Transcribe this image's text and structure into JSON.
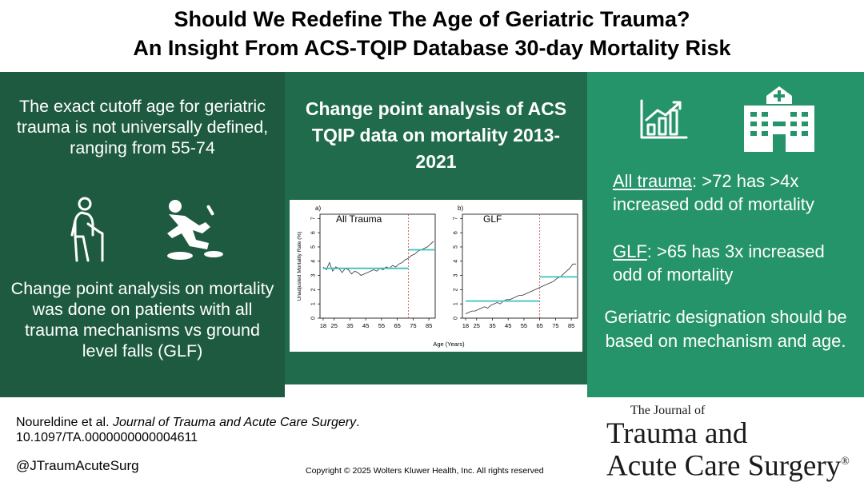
{
  "title": {
    "line1": "Should We Redefine The Age of Geriatric Trauma?",
    "line2": "An Insight From ACS-TQIP Database 30-day Mortality Risk"
  },
  "left_panel": {
    "intro": "The exact cutoff age for geriatric trauma is not universally defined, ranging from 55-74",
    "icons": [
      "elderly-person-icon",
      "person-falling-icon"
    ],
    "method": "Change point analysis on mortality was done on patients with all trauma mechanisms vs ground level falls (GLF)"
  },
  "middle_panel": {
    "heading": "Change point analysis of ACS TQIP data on mortality 2013-2021"
  },
  "chart_data": [
    {
      "type": "line",
      "panel_label": "a)",
      "title": "All Trauma",
      "xlabel": "Age (Years)",
      "ylabel": "Unadjusted Mortality Rate (%)",
      "x_ticks": [
        18,
        25,
        35,
        45,
        55,
        65,
        75,
        85
      ],
      "y_ticks": [
        0,
        1,
        2,
        3,
        4,
        5,
        6,
        7
      ],
      "xlim": [
        16,
        89
      ],
      "ylim": [
        0,
        7.3
      ],
      "change_point": 72,
      "segments": [
        {
          "x_start": 18,
          "x_end": 72,
          "y": 3.5
        },
        {
          "x_start": 72,
          "x_end": 89,
          "y": 4.8
        }
      ],
      "series": [
        {
          "x": [
            18,
            20,
            22,
            24,
            26,
            28,
            30,
            32,
            34,
            36,
            38,
            40,
            42,
            44,
            46,
            48,
            50,
            52,
            54,
            56,
            58,
            60,
            62,
            64,
            66,
            68,
            70,
            72,
            74,
            76,
            78,
            80,
            82,
            84,
            86,
            88
          ],
          "y": [
            3.6,
            3.4,
            3.9,
            3.3,
            3.6,
            3.5,
            3.2,
            3.5,
            3.4,
            3.1,
            3.3,
            3.2,
            3.0,
            3.1,
            3.2,
            3.3,
            3.4,
            3.3,
            3.5,
            3.4,
            3.6,
            3.5,
            3.7,
            3.6,
            3.8,
            3.9,
            4.1,
            4.2,
            4.4,
            4.5,
            4.7,
            4.8,
            4.9,
            5.0,
            5.2,
            5.4
          ]
        }
      ]
    },
    {
      "type": "line",
      "panel_label": "b)",
      "title": "GLF",
      "xlabel": "Age (Years)",
      "ylabel": "",
      "x_ticks": [
        18,
        25,
        35,
        45,
        55,
        65,
        75,
        85
      ],
      "y_ticks": [
        0,
        1,
        2,
        3,
        4,
        5,
        6,
        7
      ],
      "xlim": [
        16,
        89
      ],
      "ylim": [
        0,
        7.3
      ],
      "change_point": 65,
      "segments": [
        {
          "x_start": 18,
          "x_end": 65,
          "y": 1.2
        },
        {
          "x_start": 65,
          "x_end": 89,
          "y": 2.9
        }
      ],
      "series": [
        {
          "x": [
            18,
            20,
            22,
            24,
            26,
            28,
            30,
            32,
            34,
            36,
            38,
            40,
            42,
            44,
            46,
            48,
            50,
            52,
            54,
            56,
            58,
            60,
            62,
            64,
            66,
            68,
            70,
            72,
            74,
            76,
            78,
            80,
            82,
            84,
            86,
            88
          ],
          "y": [
            0.3,
            0.4,
            0.5,
            0.5,
            0.6,
            0.7,
            0.8,
            0.7,
            0.9,
            1.0,
            1.1,
            1.0,
            1.2,
            1.3,
            1.3,
            1.4,
            1.5,
            1.6,
            1.6,
            1.7,
            1.8,
            1.9,
            2.0,
            2.1,
            2.2,
            2.3,
            2.4,
            2.5,
            2.6,
            2.8,
            2.9,
            3.1,
            3.3,
            3.5,
            3.8,
            3.8
          ]
        }
      ]
    }
  ],
  "right_panel": {
    "icons": [
      "bar-chart-growth-icon",
      "hospital-icon"
    ],
    "finding1_label": "All trauma",
    "finding1_text": ": >72 has >4x increased odd of mortality",
    "finding2_label": "GLF",
    "finding2_text": ": >65 has 3x increased odd of mortality",
    "conclusion": "Geriatric designation should be based on mechanism and age."
  },
  "citation": {
    "authors": "Noureldine et al. ",
    "journal": "Journal of Trauma and Acute Care Surgery",
    "period": ".",
    "doi": "10.1097/TA.0000000000004611"
  },
  "handle": "@JTraumAcuteSurg",
  "copyright": "Copyright © 2025  Wolters Kluwer Health, Inc. All rights reserved",
  "journal_logo": {
    "small": "The Journal of",
    "line1": "Trauma and",
    "line2": "Acute Care Surgery",
    "mark": "®"
  },
  "colors": {
    "panel_left": "#1d5a40",
    "panel_middle": "#1f6b4b",
    "panel_right": "#26946a",
    "chart_step": "#3cc0c0",
    "chart_changepoint": "#d04040"
  }
}
